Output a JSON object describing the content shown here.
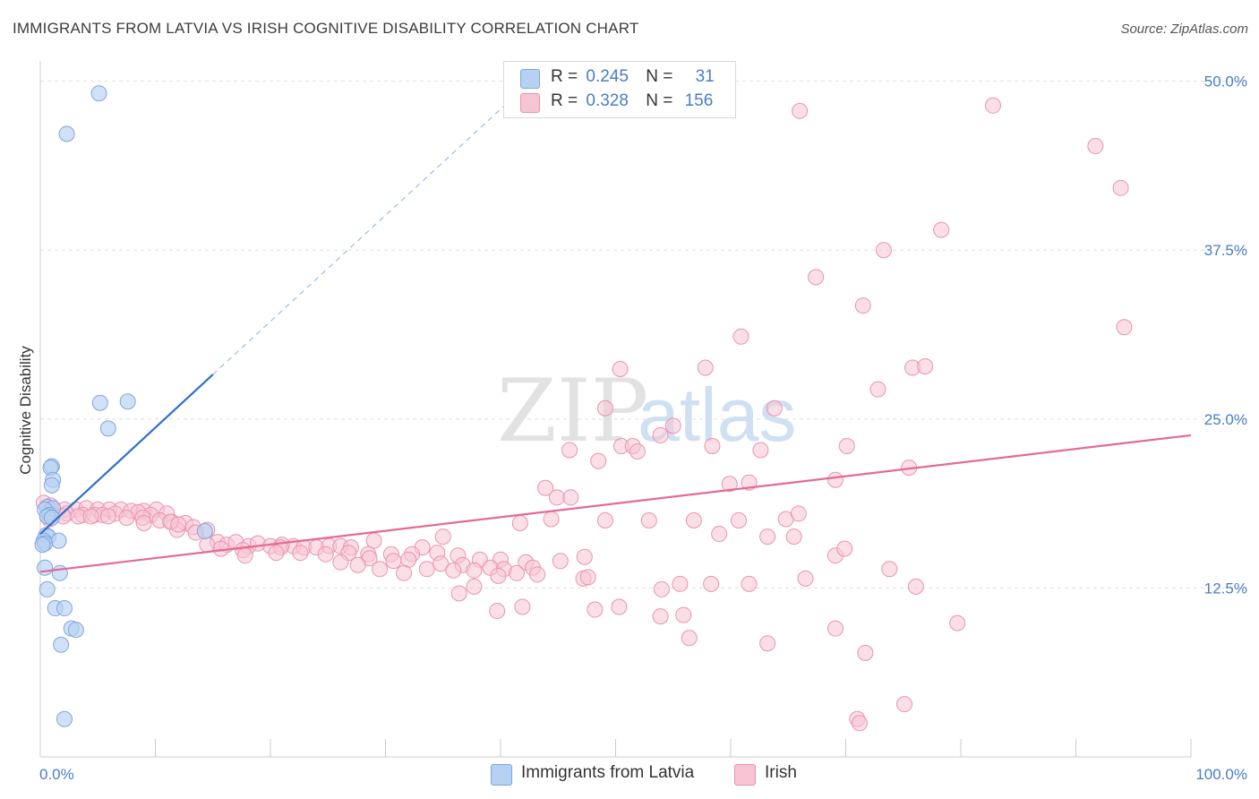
{
  "header": {
    "title": "IMMIGRANTS FROM LATVIA VS IRISH COGNITIVE DISABILITY CORRELATION CHART",
    "source": "Source: ZipAtlas.com"
  },
  "legend": {
    "row1": {
      "r_label": "R =",
      "r_value": "0.245",
      "n_label": "N =",
      "n_value": "31"
    },
    "row2": {
      "r_label": "R =",
      "r_value": "0.328",
      "n_label": "N =",
      "n_value": "156"
    }
  },
  "bottom_legend": {
    "latvia": "Immigrants from Latvia",
    "irish": "Irish"
  },
  "watermark": {
    "zip": "ZIP",
    "atlas": "atlas"
  },
  "colors": {
    "blue_fill": "#b7d1f2",
    "blue_stroke": "#7ea6de",
    "blue_line": "#2f6fcb",
    "pink_fill": "#f7c4d3",
    "pink_stroke": "#ea93b0",
    "pink_line": "#e46a96",
    "axis_text": "#4a7cc9",
    "grid": "#dddddd"
  },
  "chart_data": {
    "type": "scatter",
    "title": "IMMIGRANTS FROM LATVIA VS IRISH COGNITIVE DISABILITY CORRELATION CHART",
    "xlabel": "",
    "ylabel": "Cognitive Disability",
    "xlim": [
      0,
      100
    ],
    "ylim": [
      0,
      51.5
    ],
    "x_tick_labels": [
      "0.0%",
      "100.0%"
    ],
    "y_ticks": [
      12.5,
      25.0,
      37.5,
      50.0
    ],
    "y_tick_labels": [
      "12.5%",
      "25.0%",
      "37.5%",
      "50.0%"
    ],
    "grid": true,
    "legend_position": "top-center",
    "series": [
      {
        "name": "Immigrants from Latvia",
        "R": 0.245,
        "N": 31,
        "trend": {
          "x0": 0,
          "y0": 16.5,
          "x1": 15,
          "y1": 28.3,
          "dash_to_x": 42,
          "dash_to_y": 49.5
        },
        "points": [
          [
            5.1,
            49.1
          ],
          [
            2.3,
            46.1
          ],
          [
            5.2,
            26.2
          ],
          [
            7.6,
            26.3
          ],
          [
            5.9,
            24.3
          ],
          [
            1.0,
            21.5
          ],
          [
            0.9,
            21.4
          ],
          [
            1.1,
            20.5
          ],
          [
            1.0,
            20.1
          ],
          [
            0.6,
            18.5
          ],
          [
            1.1,
            18.4
          ],
          [
            0.4,
            18.3
          ],
          [
            0.8,
            17.9
          ],
          [
            0.6,
            17.8
          ],
          [
            1.0,
            17.7
          ],
          [
            14.3,
            16.7
          ],
          [
            0.5,
            16.4
          ],
          [
            0.7,
            16.3
          ],
          [
            0.3,
            16.0
          ],
          [
            1.6,
            16.0
          ],
          [
            0.4,
            15.8
          ],
          [
            0.2,
            15.7
          ],
          [
            0.4,
            14.0
          ],
          [
            1.7,
            13.6
          ],
          [
            0.6,
            12.4
          ],
          [
            1.3,
            11.0
          ],
          [
            2.1,
            11.0
          ],
          [
            2.7,
            9.5
          ],
          [
            3.1,
            9.4
          ],
          [
            1.8,
            8.3
          ],
          [
            2.1,
            2.8
          ]
        ]
      },
      {
        "name": "Irish",
        "R": 0.328,
        "N": 156,
        "trend": {
          "x0": 0,
          "y0": 13.7,
          "x1": 100,
          "y1": 23.8
        },
        "points": [
          [
            82.8,
            48.2
          ],
          [
            66.0,
            47.8
          ],
          [
            91.7,
            45.2
          ],
          [
            93.9,
            42.1
          ],
          [
            78.3,
            39.0
          ],
          [
            73.3,
            37.5
          ],
          [
            67.4,
            35.5
          ],
          [
            71.5,
            33.4
          ],
          [
            94.2,
            31.8
          ],
          [
            60.9,
            31.1
          ],
          [
            50.4,
            28.7
          ],
          [
            57.8,
            28.8
          ],
          [
            75.8,
            28.8
          ],
          [
            76.9,
            28.9
          ],
          [
            72.8,
            27.2
          ],
          [
            49.1,
            25.8
          ],
          [
            63.8,
            25.8
          ],
          [
            55.0,
            24.5
          ],
          [
            53.9,
            23.8
          ],
          [
            46.0,
            22.7
          ],
          [
            50.5,
            23.0
          ],
          [
            51.5,
            23.0
          ],
          [
            58.4,
            23.0
          ],
          [
            62.6,
            22.7
          ],
          [
            70.1,
            23.0
          ],
          [
            51.9,
            22.6
          ],
          [
            48.5,
            21.9
          ],
          [
            75.5,
            21.4
          ],
          [
            69.1,
            20.5
          ],
          [
            59.9,
            20.2
          ],
          [
            61.6,
            20.3
          ],
          [
            43.9,
            19.9
          ],
          [
            44.9,
            19.2
          ],
          [
            46.1,
            19.2
          ],
          [
            0.3,
            18.8
          ],
          [
            0.9,
            18.6
          ],
          [
            1.0,
            18.4
          ],
          [
            2.1,
            18.3
          ],
          [
            3.1,
            18.3
          ],
          [
            4.0,
            18.4
          ],
          [
            5.0,
            18.3
          ],
          [
            6.0,
            18.3
          ],
          [
            7.0,
            18.3
          ],
          [
            7.9,
            18.2
          ],
          [
            9.0,
            18.2
          ],
          [
            10.1,
            18.3
          ],
          [
            0.9,
            18.0
          ],
          [
            2.3,
            18.0
          ],
          [
            3.7,
            17.9
          ],
          [
            4.7,
            17.9
          ],
          [
            5.4,
            17.9
          ],
          [
            6.5,
            18.0
          ],
          [
            8.5,
            18.1
          ],
          [
            9.6,
            17.9
          ],
          [
            11.0,
            18.0
          ],
          [
            0.8,
            17.6
          ],
          [
            2.0,
            17.8
          ],
          [
            3.3,
            17.8
          ],
          [
            4.4,
            17.8
          ],
          [
            5.9,
            17.8
          ],
          [
            7.5,
            17.7
          ],
          [
            8.9,
            17.7
          ],
          [
            10.4,
            17.5
          ],
          [
            11.4,
            17.4
          ],
          [
            12.6,
            17.3
          ],
          [
            9.0,
            17.3
          ],
          [
            13.3,
            17.0
          ],
          [
            14.5,
            16.8
          ],
          [
            11.9,
            16.8
          ],
          [
            13.5,
            16.6
          ],
          [
            11.3,
            17.4
          ],
          [
            12.0,
            17.2
          ],
          [
            44.4,
            17.6
          ],
          [
            49.1,
            17.5
          ],
          [
            52.9,
            17.5
          ],
          [
            56.8,
            17.5
          ],
          [
            60.7,
            17.5
          ],
          [
            64.8,
            17.6
          ],
          [
            65.9,
            18.0
          ],
          [
            41.7,
            17.3
          ],
          [
            35.0,
            16.3
          ],
          [
            15.4,
            15.9
          ],
          [
            16.2,
            15.7
          ],
          [
            17.0,
            15.9
          ],
          [
            18.1,
            15.6
          ],
          [
            18.9,
            15.8
          ],
          [
            20.0,
            15.6
          ],
          [
            21.0,
            15.7
          ],
          [
            22.0,
            15.6
          ],
          [
            22.9,
            15.5
          ],
          [
            24.0,
            15.5
          ],
          [
            25.1,
            15.6
          ],
          [
            26.1,
            15.6
          ],
          [
            27.0,
            15.5
          ],
          [
            14.5,
            15.7
          ],
          [
            20.9,
            15.5
          ],
          [
            29.0,
            16.0
          ],
          [
            33.2,
            15.5
          ],
          [
            15.7,
            15.4
          ],
          [
            17.6,
            15.3
          ],
          [
            20.5,
            15.1
          ],
          [
            22.6,
            15.1
          ],
          [
            24.8,
            15.0
          ],
          [
            26.8,
            15.1
          ],
          [
            28.5,
            15.0
          ],
          [
            30.5,
            15.0
          ],
          [
            32.3,
            15.0
          ],
          [
            34.5,
            15.1
          ],
          [
            36.3,
            14.9
          ],
          [
            38.2,
            14.6
          ],
          [
            40.0,
            14.6
          ],
          [
            42.2,
            14.4
          ],
          [
            45.2,
            14.5
          ],
          [
            47.3,
            14.8
          ],
          [
            63.2,
            16.3
          ],
          [
            65.5,
            16.3
          ],
          [
            59.0,
            16.5
          ],
          [
            69.1,
            14.9
          ],
          [
            69.9,
            15.4
          ],
          [
            17.8,
            14.9
          ],
          [
            28.6,
            14.7
          ],
          [
            30.7,
            14.5
          ],
          [
            32.0,
            14.6
          ],
          [
            34.8,
            14.3
          ],
          [
            36.7,
            14.2
          ],
          [
            39.1,
            14.0
          ],
          [
            40.3,
            13.9
          ],
          [
            42.8,
            14.0
          ],
          [
            26.1,
            14.4
          ],
          [
            27.6,
            14.2
          ],
          [
            29.5,
            13.9
          ],
          [
            31.6,
            13.6
          ],
          [
            33.6,
            13.9
          ],
          [
            35.9,
            13.8
          ],
          [
            37.7,
            13.8
          ],
          [
            39.8,
            13.4
          ],
          [
            41.4,
            13.6
          ],
          [
            43.2,
            13.5
          ],
          [
            47.2,
            13.2
          ],
          [
            47.6,
            13.3
          ],
          [
            66.5,
            13.2
          ],
          [
            73.8,
            13.9
          ],
          [
            55.6,
            12.8
          ],
          [
            58.3,
            12.8
          ],
          [
            61.6,
            12.8
          ],
          [
            76.1,
            12.6
          ],
          [
            54.0,
            12.4
          ],
          [
            37.7,
            12.6
          ],
          [
            36.4,
            12.1
          ],
          [
            39.7,
            10.8
          ],
          [
            41.9,
            11.1
          ],
          [
            48.2,
            10.9
          ],
          [
            50.3,
            11.1
          ],
          [
            53.9,
            10.4
          ],
          [
            55.9,
            10.5
          ],
          [
            79.7,
            9.9
          ],
          [
            69.1,
            9.5
          ],
          [
            56.4,
            8.8
          ],
          [
            63.2,
            8.4
          ],
          [
            71.7,
            7.7
          ],
          [
            75.1,
            3.9
          ],
          [
            71.0,
            2.8
          ],
          [
            71.2,
            2.5
          ]
        ]
      }
    ]
  }
}
